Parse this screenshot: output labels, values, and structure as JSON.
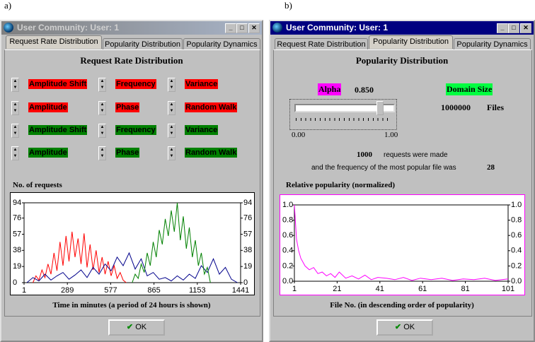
{
  "labels": [
    "a)",
    "b)"
  ],
  "windows": [
    {
      "title": "User Community: User: 1",
      "tabs": [
        "Request Rate Distribution",
        "Popularity Distribution",
        "Popularity Dynamics"
      ],
      "heading": "Request Rate Distribution",
      "controls": [
        {
          "color": "#ff0000",
          "items": [
            "Amplitude Shift",
            "Frequency",
            "Variance"
          ]
        },
        {
          "color": "#ff0000",
          "items": [
            "Amplitude",
            "Phase",
            "Random Walk"
          ]
        },
        {
          "color": "#008000",
          "items": [
            "Amplitude Shift",
            "Frequency",
            "Variance"
          ]
        },
        {
          "color": "#008000",
          "items": [
            "Amplitude",
            "Phase",
            "Random Walk"
          ]
        }
      ],
      "button": "OK"
    },
    {
      "title": "User Community: User: 1",
      "tabs": [
        "Request Rate Distribution",
        "Popularity Distribution",
        "Popularity Dynamics"
      ],
      "heading": "Popularity Distribution",
      "alpha_label": "Alpha",
      "alpha": "0.850",
      "domain_label": "Domain Size",
      "domain_size": "1000000",
      "domain_unit": "Files",
      "slider_min": "0.00",
      "slider_max": "1.00",
      "requests": "1000",
      "requests_text": "requests were made",
      "frequency_text": "and the frequency of the most popular file was",
      "frequency": "28",
      "button": "OK"
    }
  ],
  "chart_data": [
    {
      "type": "line",
      "y_label": "No. of requests",
      "x_label": "Time in minutes (a period of 24 hours is shown)",
      "xlim": [
        1,
        1441
      ],
      "xticks": [
        1,
        289,
        577,
        865,
        1153,
        1441
      ],
      "ylim": [
        0,
        94
      ],
      "yticks": [
        0,
        19,
        38,
        57,
        76,
        94
      ],
      "border": "#000000",
      "series": [
        {
          "color": "#ff0000",
          "x": [
            60,
            80,
            100,
            120,
            140,
            160,
            180,
            200,
            220,
            240,
            260,
            280,
            300,
            320,
            340,
            360,
            380,
            400,
            420,
            440,
            460,
            480,
            500,
            520,
            540,
            560,
            580,
            600,
            620,
            640,
            660,
            680
          ],
          "values": [
            0,
            8,
            3,
            15,
            6,
            22,
            10,
            35,
            14,
            48,
            20,
            55,
            25,
            60,
            30,
            52,
            22,
            58,
            18,
            45,
            15,
            38,
            12,
            30,
            10,
            25,
            8,
            20,
            5,
            12,
            3,
            0
          ]
        },
        {
          "color": "#00008b",
          "x": [
            20,
            60,
            100,
            140,
            180,
            220,
            260,
            300,
            340,
            380,
            420,
            460,
            500,
            540,
            580,
            620,
            660,
            700,
            740,
            780,
            820,
            860,
            900,
            940,
            980,
            1020,
            1060,
            1100,
            1140,
            1180,
            1220,
            1260,
            1300,
            1340,
            1380,
            1420
          ],
          "values": [
            0,
            6,
            2,
            10,
            3,
            8,
            12,
            4,
            9,
            15,
            6,
            18,
            10,
            22,
            14,
            30,
            20,
            35,
            16,
            28,
            8,
            12,
            4,
            6,
            2,
            8,
            3,
            10,
            5,
            20,
            12,
            28,
            10,
            18,
            4,
            0
          ]
        },
        {
          "color": "#008000",
          "x": [
            720,
            740,
            760,
            780,
            800,
            820,
            840,
            860,
            880,
            900,
            920,
            940,
            960,
            980,
            1000,
            1020,
            1040,
            1060,
            1080,
            1100,
            1120,
            1140,
            1160,
            1180,
            1200,
            1220,
            1240
          ],
          "values": [
            0,
            10,
            5,
            22,
            12,
            35,
            20,
            48,
            30,
            62,
            45,
            75,
            55,
            85,
            60,
            94,
            50,
            78,
            40,
            65,
            30,
            50,
            20,
            35,
            10,
            18,
            0
          ]
        }
      ]
    },
    {
      "type": "line",
      "y_label": "Relative popularity (normalized)",
      "x_label": "File No. (in descending order of popularity)",
      "xlim": [
        1,
        101
      ],
      "xticks": [
        1,
        21,
        41,
        61,
        81,
        101
      ],
      "ylim": [
        0,
        1
      ],
      "yticks": [
        {
          "value": 0,
          "label": "0.0"
        },
        0.2,
        0.4,
        0.6,
        0.8,
        {
          "value": 1,
          "label": "1.0"
        }
      ],
      "border": "#ff00ff",
      "series": [
        {
          "color": "#ff00ff",
          "x": [
            1,
            2,
            3,
            4,
            5,
            6,
            8,
            10,
            12,
            14,
            16,
            18,
            20,
            22,
            25,
            28,
            31,
            34,
            37,
            40,
            44,
            48,
            52,
            56,
            60,
            65,
            70,
            75,
            80,
            85,
            90,
            95,
            101
          ],
          "values": [
            1.0,
            0.55,
            0.4,
            0.3,
            0.25,
            0.2,
            0.15,
            0.18,
            0.1,
            0.12,
            0.07,
            0.1,
            0.05,
            0.12,
            0.04,
            0.07,
            0.03,
            0.08,
            0.02,
            0.05,
            0.04,
            0.02,
            0.05,
            0.01,
            0.04,
            0.02,
            0.04,
            0.01,
            0.03,
            0.02,
            0.04,
            0.01,
            0.03
          ]
        }
      ]
    }
  ]
}
